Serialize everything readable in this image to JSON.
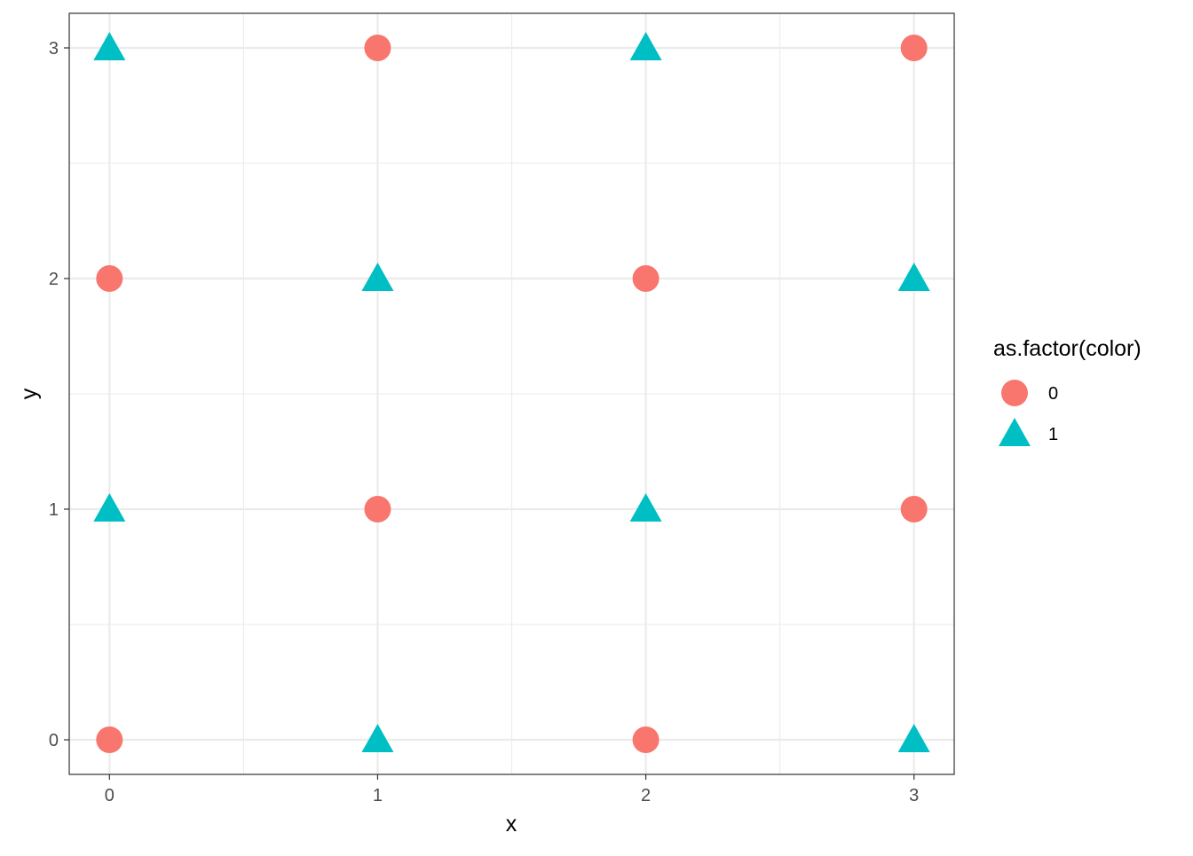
{
  "chart_data": {
    "type": "scatter",
    "xlabel": "x",
    "ylabel": "y",
    "xlim": [
      -0.15,
      3.15
    ],
    "ylim": [
      -0.15,
      3.15
    ],
    "x_ticks": [
      0,
      1,
      2,
      3
    ],
    "y_ticks": [
      0,
      1,
      2,
      3
    ],
    "grid": true,
    "legend": {
      "title": "as.factor(color)",
      "placement": "right"
    },
    "series": [
      {
        "name": "0",
        "shape": "circle",
        "color": "#F8766D",
        "points": [
          {
            "x": 0,
            "y": 0
          },
          {
            "x": 0,
            "y": 2
          },
          {
            "x": 1,
            "y": 1
          },
          {
            "x": 1,
            "y": 3
          },
          {
            "x": 2,
            "y": 0
          },
          {
            "x": 2,
            "y": 2
          },
          {
            "x": 3,
            "y": 1
          },
          {
            "x": 3,
            "y": 3
          }
        ]
      },
      {
        "name": "1",
        "shape": "triangle",
        "color": "#00BFC4",
        "points": [
          {
            "x": 0,
            "y": 1
          },
          {
            "x": 0,
            "y": 3
          },
          {
            "x": 1,
            "y": 0
          },
          {
            "x": 1,
            "y": 2
          },
          {
            "x": 2,
            "y": 1
          },
          {
            "x": 2,
            "y": 3
          },
          {
            "x": 3,
            "y": 0
          },
          {
            "x": 3,
            "y": 2
          }
        ]
      }
    ]
  }
}
